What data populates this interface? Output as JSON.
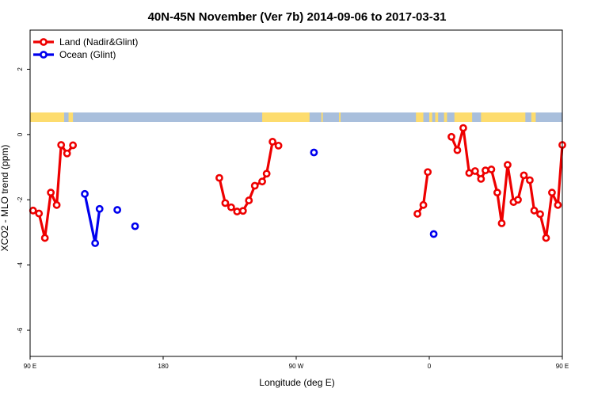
{
  "chart_data": {
    "type": "line",
    "title": "40N-45N November (Ver 7b)   2014-09-06 to 2017-03-31",
    "xlabel": "Longitude (deg E)",
    "ylabel": "XCO2 - MLO trend (ppm)",
    "xlim": [
      90,
      450
    ],
    "ylim": [
      -6.8,
      3.2
    ],
    "x_ticks": [
      {
        "value": 90,
        "label": "90 E"
      },
      {
        "value": 180,
        "label": "180"
      },
      {
        "value": 270,
        "label": "90 W"
      },
      {
        "value": 360,
        "label": "0"
      },
      {
        "value": 450,
        "label": "90 E"
      },
      {
        "value": 540,
        "label": "180"
      }
    ],
    "y_ticks": [
      {
        "value": 2,
        "label": "2"
      },
      {
        "value": 0,
        "label": "0"
      },
      {
        "value": -2,
        "label": "-2"
      },
      {
        "value": -4,
        "label": "-4"
      },
      {
        "value": -6,
        "label": "-6"
      }
    ],
    "legend": {
      "placement": "top-left"
    },
    "land_ocean_band": {
      "land_color": "#fddc6e",
      "ocean_color": "#a9bfdc"
    },
    "series": [
      {
        "name": "Land (Nadir&Glint)",
        "color": "#ee0000",
        "segments": [
          [
            [
              92,
              -2.33
            ],
            [
              96,
              -2.42
            ],
            [
              100,
              -3.17
            ],
            [
              104,
              -1.78
            ],
            [
              108,
              -2.16
            ],
            [
              111,
              -0.32
            ],
            [
              115,
              -0.58
            ],
            [
              119,
              -0.33
            ]
          ],
          [
            [
              218,
              -1.33
            ],
            [
              222,
              -2.1
            ],
            [
              226,
              -2.23
            ],
            [
              230,
              -2.36
            ],
            [
              234,
              -2.34
            ],
            [
              238,
              -2.02
            ],
            [
              242,
              -1.57
            ],
            [
              247,
              -1.44
            ],
            [
              250,
              -1.2
            ],
            [
              254,
              -0.22
            ],
            [
              258,
              -0.34
            ]
          ],
          [
            [
              352,
              -2.43
            ],
            [
              356,
              -2.16
            ],
            [
              359,
              -1.15
            ]
          ],
          [
            [
              375,
              -0.07
            ],
            [
              379,
              -0.48
            ],
            [
              383,
              0.2
            ],
            [
              387,
              -1.18
            ],
            [
              391,
              -1.12
            ],
            [
              395,
              -1.36
            ],
            [
              398,
              -1.1
            ],
            [
              402,
              -1.07
            ],
            [
              406,
              -1.78
            ],
            [
              409,
              -2.72
            ],
            [
              413,
              -0.93
            ],
            [
              417,
              -2.07
            ],
            [
              420,
              -2.0
            ],
            [
              424,
              -1.25
            ],
            [
              428,
              -1.4
            ],
            [
              431,
              -2.33
            ],
            [
              435,
              -2.44
            ],
            [
              439,
              -3.17
            ],
            [
              443,
              -1.78
            ],
            [
              447,
              -2.16
            ],
            [
              450,
              -0.32
            ]
          ]
        ]
      },
      {
        "name": "Ocean (Glint)",
        "color": "#0000ee",
        "segments": [
          [
            [
              127,
              -1.82
            ],
            [
              134,
              -3.33
            ],
            [
              137,
              -2.28
            ]
          ],
          [
            [
              149,
              -2.31
            ]
          ],
          [
            [
              161,
              -2.81
            ]
          ],
          [
            [
              282,
              -0.55
            ]
          ],
          [
            [
              363,
              -3.05
            ]
          ]
        ]
      }
    ]
  }
}
